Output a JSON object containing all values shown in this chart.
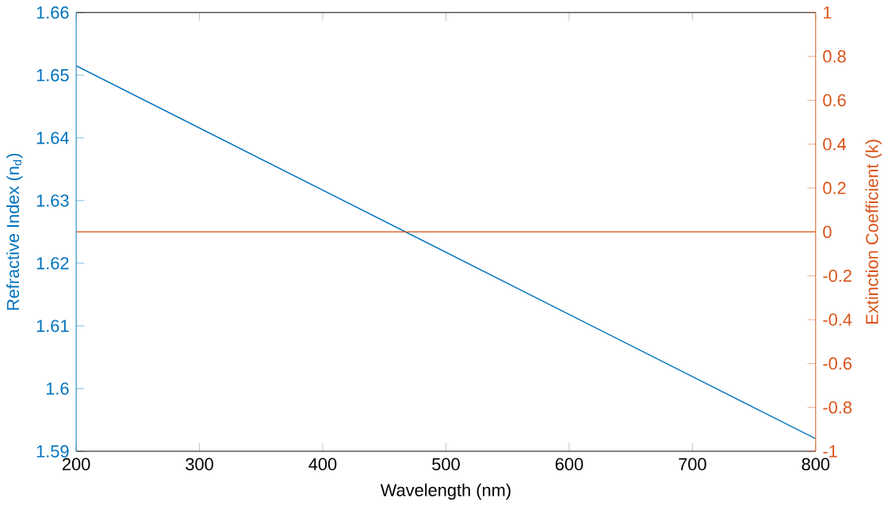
{
  "chart_data": {
    "type": "line",
    "xlabel": "Wavelength (nm)",
    "ylabel": "Refractive Index (n$_{d}$)",
    "y2label": "Extinction Coefficient (k)",
    "xlim": [
      200,
      800
    ],
    "xticks": [
      200,
      300,
      400,
      500,
      600,
      700,
      800
    ],
    "ylim": [
      1.59,
      1.66
    ],
    "yticks": [
      1.59,
      1.6,
      1.61,
      1.62,
      1.63,
      1.64,
      1.65,
      1.66
    ],
    "y2lim": [
      -1,
      1
    ],
    "y2ticks": [
      -1,
      -0.8,
      -0.6,
      -0.4,
      -0.2,
      0,
      0.2,
      0.4,
      0.6,
      0.8,
      1
    ],
    "x": [
      200,
      800
    ],
    "grid": false,
    "marker": "none",
    "line_style": "solid",
    "series": [
      {
        "color": "#0072bd",
        "values": [
          1.6515,
          1.592
        ]
      },
      {
        "color": "#d95319",
        "axis": "y2",
        "values": [
          0,
          0
        ]
      }
    ]
  }
}
